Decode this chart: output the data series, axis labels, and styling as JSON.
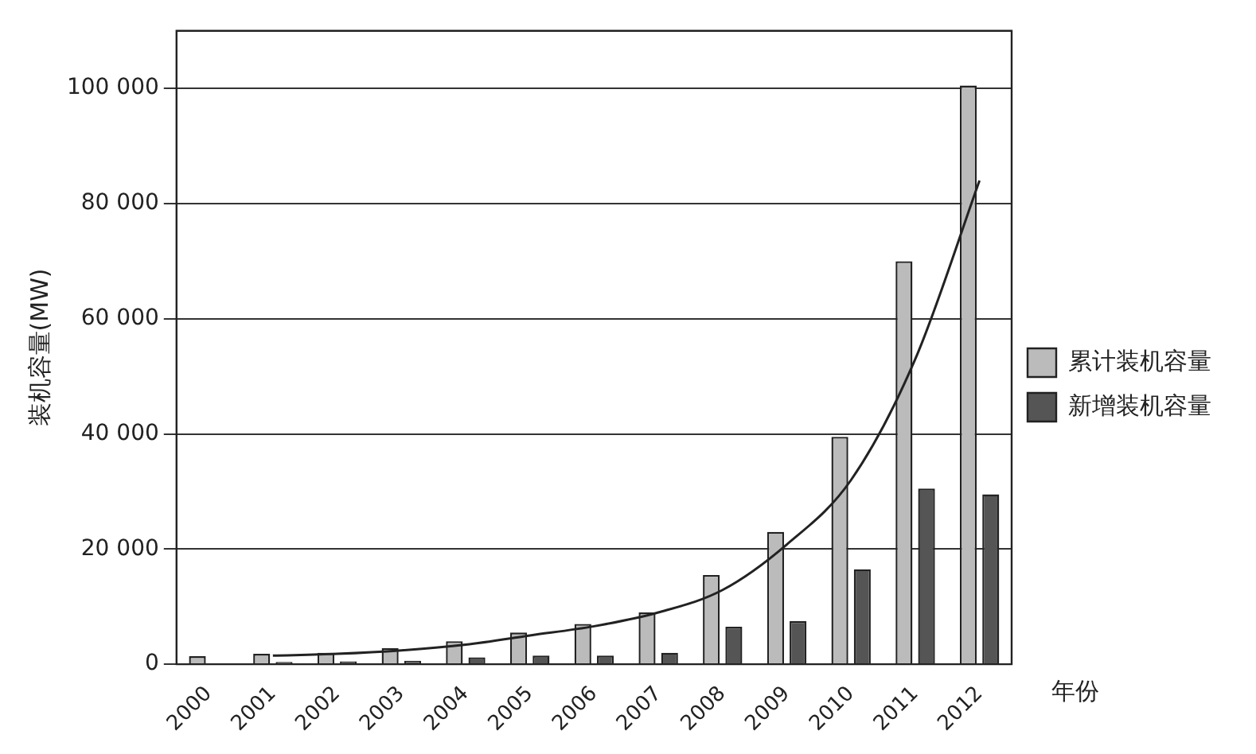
{
  "chart_data": {
    "type": "bar",
    "ylabel": "装机容量(MW)",
    "xlabel": "年份",
    "categories": [
      "2000",
      "2001",
      "2002",
      "2003",
      "2004",
      "2005",
      "2006",
      "2007",
      "2008",
      "2009",
      "2010",
      "2011",
      "2012"
    ],
    "series": [
      {
        "name": "累计装机容量",
        "color": "#bbbbbb",
        "values": [
          1400,
          1800,
          2000,
          2800,
          4000,
          5500,
          7000,
          9000,
          15500,
          23000,
          39500,
          70000,
          100500
        ]
      },
      {
        "name": "新增装机容量",
        "color": "#555555",
        "values": [
          null,
          400,
          500,
          600,
          1200,
          1500,
          1500,
          2000,
          6500,
          7500,
          16500,
          30500,
          29500
        ]
      },
      {
        "type": "line",
        "color": "#222222",
        "values": [
          null,
          1500,
          1800,
          2400,
          3400,
          5000,
          6600,
          9000,
          12900,
          20800,
          32000,
          53000,
          84000
        ]
      }
    ],
    "ylim": [
      0,
      110000
    ],
    "yticks": [
      {
        "value": 0,
        "label": "0"
      },
      {
        "value": 20000,
        "label": "20 000"
      },
      {
        "value": 40000,
        "label": "40 000"
      },
      {
        "value": 60000,
        "label": "60 000"
      },
      {
        "value": 80000,
        "label": "80 000"
      },
      {
        "value": 100000,
        "label": "100 000"
      }
    ],
    "grid": "y",
    "legend": "right",
    "marker": "none"
  }
}
